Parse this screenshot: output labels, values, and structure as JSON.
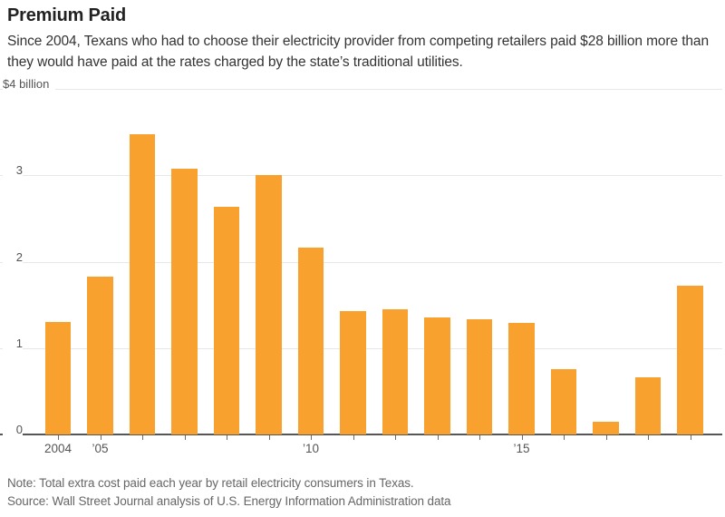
{
  "header": {
    "title": "Premium Paid",
    "subtitle": "Since 2004, Texans who had to choose their electricity provider from competing retailers paid $28 billion more than they would have paid at the rates charged by the state’s traditional utilities."
  },
  "chart_data": {
    "type": "bar",
    "title": "Premium Paid",
    "categories": [
      "2004",
      "2005",
      "2006",
      "2007",
      "2008",
      "2009",
      "2010",
      "2011",
      "2012",
      "2013",
      "2014",
      "2015",
      "2016",
      "2017",
      "2018",
      "2019"
    ],
    "values": [
      1.3,
      1.83,
      3.47,
      3.08,
      2.64,
      3.0,
      2.16,
      1.43,
      1.45,
      1.35,
      1.33,
      1.29,
      0.76,
      0.15,
      0.66,
      1.72
    ],
    "ylabel": "billion dollars",
    "ylim": [
      0,
      4
    ],
    "grid": true,
    "legend_position": "none",
    "y_ticks": [
      {
        "value": 4,
        "label": "$4 billion"
      },
      {
        "value": 3,
        "label": "3"
      },
      {
        "value": 2,
        "label": "2"
      },
      {
        "value": 1,
        "label": "1"
      },
      {
        "value": 0,
        "label": "0"
      }
    ],
    "x_tick_labels": [
      {
        "index": 0,
        "label": "2004"
      },
      {
        "index": 1,
        "label": "’05"
      },
      {
        "index": 6,
        "label": "’10"
      },
      {
        "index": 11,
        "label": "’15"
      }
    ],
    "bar_color": "#f8a12f"
  },
  "footer": {
    "note": "Note: Total extra cost paid each year by retail electricity consumers in Texas.",
    "source": "Source: Wall Street Journal analysis of U.S. Energy Information Administration data"
  }
}
